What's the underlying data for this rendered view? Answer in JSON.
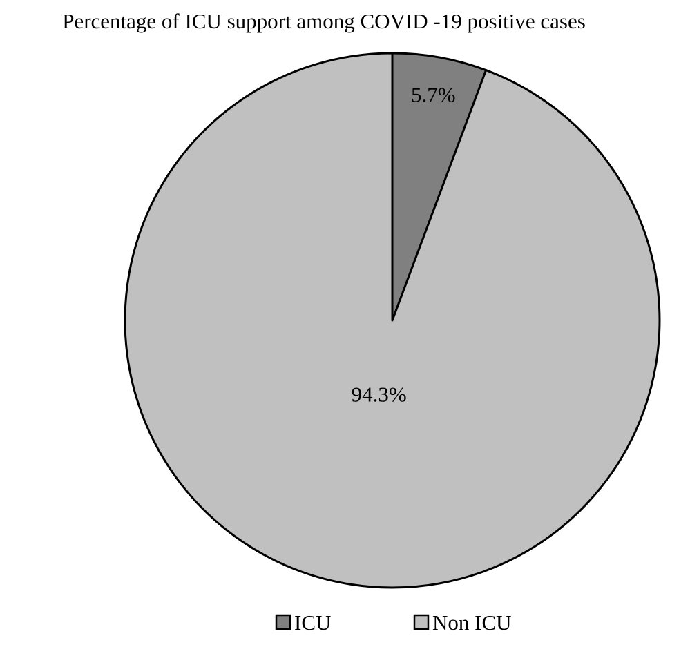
{
  "chart_data": {
    "type": "pie",
    "title": "Percentage of ICU support among COVID -19 positive cases",
    "categories": [
      "ICU",
      "Non ICU"
    ],
    "values": [
      5.7,
      94.3
    ],
    "data_labels": [
      "5.7%",
      "94.3%"
    ],
    "colors": [
      "#808080",
      "#c0c0c0"
    ],
    "start_angle": "12 o'clock, clockwise",
    "legend": {
      "position": "bottom",
      "entries": [
        "ICU",
        "Non ICU"
      ]
    }
  }
}
